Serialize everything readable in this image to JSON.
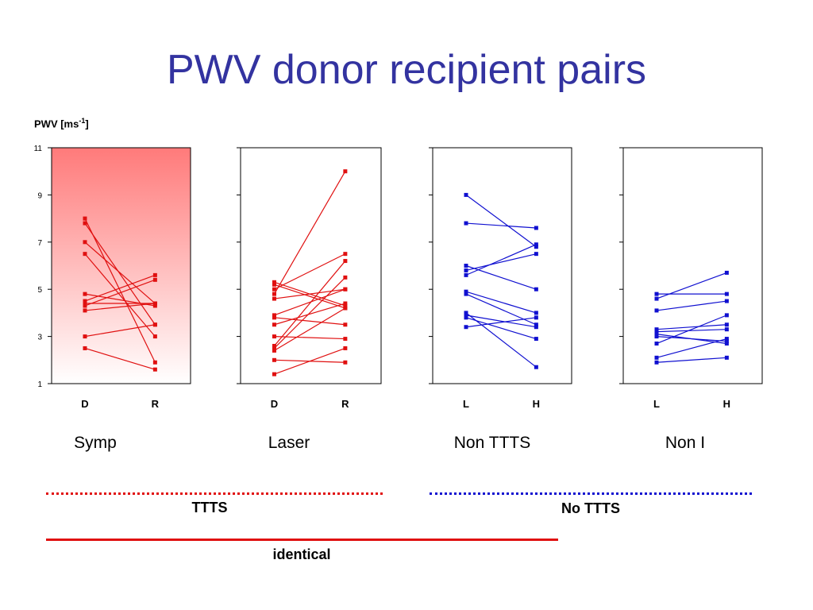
{
  "title": "PWV donor recipient pairs",
  "ylabel_main": "PWV [ms",
  "ylabel_sup": "-1",
  "ylabel_end": "]",
  "colors": {
    "title": "#3333a0",
    "red": "#e01010",
    "blue": "#1010d0",
    "gradient_top": "#ff7a7a"
  },
  "chart_data": [
    {
      "type": "line",
      "group": "Symp",
      "color": "red",
      "shaded": true,
      "x": [
        "D",
        "R"
      ],
      "ylim": [
        1,
        11
      ],
      "yticks": [
        1,
        3,
        5,
        7,
        9,
        11
      ],
      "pairs": [
        [
          8.0,
          1.9
        ],
        [
          7.8,
          3.5
        ],
        [
          7.0,
          4.4
        ],
        [
          6.5,
          3.0
        ],
        [
          4.8,
          4.3
        ],
        [
          4.5,
          5.6
        ],
        [
          4.4,
          4.4
        ],
        [
          4.3,
          5.4
        ],
        [
          4.1,
          4.4
        ],
        [
          3.0,
          3.5
        ],
        [
          2.5,
          1.6
        ]
      ]
    },
    {
      "type": "line",
      "group": "Laser",
      "color": "red",
      "shaded": false,
      "x": [
        "D",
        "R"
      ],
      "ylim": [
        1,
        11
      ],
      "yticks": [
        1,
        3,
        5,
        7,
        9,
        11
      ],
      "pairs": [
        [
          5.3,
          4.3
        ],
        [
          5.2,
          4.2
        ],
        [
          5.0,
          6.5
        ],
        [
          4.8,
          10.0
        ],
        [
          4.6,
          5.0
        ],
        [
          3.9,
          5.0
        ],
        [
          3.8,
          3.5
        ],
        [
          3.5,
          4.4
        ],
        [
          3.0,
          2.9
        ],
        [
          2.6,
          6.2
        ],
        [
          2.5,
          5.5
        ],
        [
          2.4,
          4.2
        ],
        [
          2.0,
          1.9
        ],
        [
          1.4,
          2.5
        ]
      ]
    },
    {
      "type": "line",
      "group": "Non TTTS",
      "color": "blue",
      "shaded": false,
      "x": [
        "L",
        "H"
      ],
      "ylim": [
        1,
        11
      ],
      "yticks": [
        1,
        3,
        5,
        7,
        9,
        11
      ],
      "pairs": [
        [
          9.0,
          6.8
        ],
        [
          7.8,
          7.6
        ],
        [
          6.0,
          5.0
        ],
        [
          5.8,
          6.5
        ],
        [
          5.6,
          6.9
        ],
        [
          4.9,
          4.0
        ],
        [
          4.8,
          3.5
        ],
        [
          4.0,
          1.7
        ],
        [
          3.9,
          3.4
        ],
        [
          3.8,
          2.9
        ],
        [
          3.4,
          3.8
        ]
      ]
    },
    {
      "type": "line",
      "group": "Non I",
      "color": "blue",
      "shaded": false,
      "x": [
        "L",
        "H"
      ],
      "ylim": [
        1,
        11
      ],
      "yticks": [
        1,
        3,
        5,
        7,
        9,
        11
      ],
      "pairs": [
        [
          4.8,
          4.8
        ],
        [
          4.6,
          5.7
        ],
        [
          4.1,
          4.5
        ],
        [
          3.3,
          3.5
        ],
        [
          3.2,
          3.3
        ],
        [
          3.1,
          2.7
        ],
        [
          3.0,
          2.8
        ],
        [
          2.7,
          3.9
        ],
        [
          2.1,
          2.9
        ],
        [
          1.9,
          2.1
        ]
      ]
    }
  ],
  "groups": {
    "symp": "Symp",
    "laser": "Laser",
    "non_ttts": "Non TTTS",
    "non_i": "Non I"
  },
  "brackets": {
    "ttts": "TTTS",
    "no_ttts": "No TTTS",
    "identical": "identical"
  }
}
